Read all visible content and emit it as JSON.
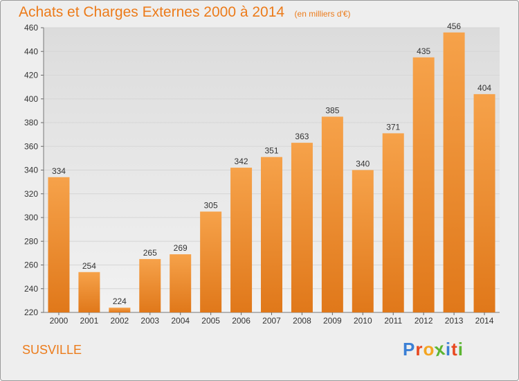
{
  "colors": {
    "bar": "#f0902c",
    "accent": "#ec7b1a",
    "grid": "#d6d6d6",
    "plot_bg": "#e6e6e6",
    "axis_text": "#333333"
  },
  "chart_data": {
    "type": "bar",
    "title": "Achats et Charges Externes 2000 à 2014",
    "subtitle": "(en milliers d'€)",
    "xlabel": "",
    "ylabel": "",
    "categories": [
      "2000",
      "2001",
      "2002",
      "2003",
      "2004",
      "2005",
      "2006",
      "2007",
      "2008",
      "2009",
      "2010",
      "2011",
      "2012",
      "2013",
      "2014"
    ],
    "values": [
      334,
      254,
      224,
      265,
      269,
      305,
      342,
      351,
      363,
      385,
      340,
      371,
      435,
      456,
      404
    ],
    "ylim": [
      220,
      460
    ],
    "yticks": [
      220,
      240,
      260,
      280,
      300,
      320,
      340,
      360,
      380,
      400,
      420,
      440,
      460
    ],
    "grid": true,
    "data_labels": true
  },
  "footer": {
    "commune": "SUSVILLE",
    "brand_letters": [
      "P",
      "r",
      "o",
      "x",
      "i",
      "t",
      "i"
    ],
    "brand_colors": [
      "#3a7fd5",
      "#e8481f",
      "#f4a521",
      "#5bb531",
      "#3a7fd5",
      "#e8481f",
      "#5bb531"
    ]
  }
}
